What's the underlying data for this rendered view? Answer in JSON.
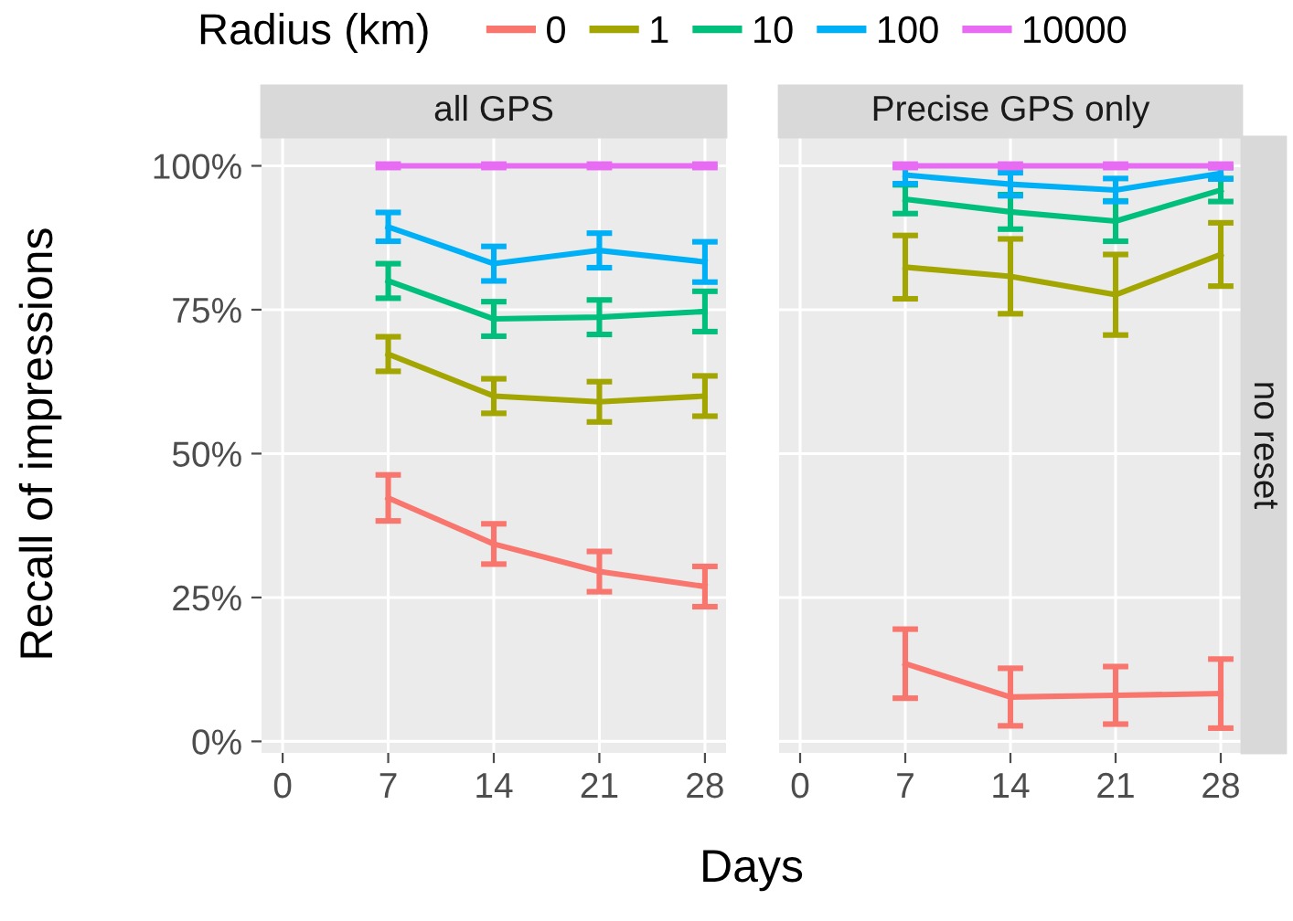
{
  "chart_data": [
    {
      "type": "line",
      "title": "all GPS",
      "ylabel": "Recall of impressions",
      "xlabel": "Days",
      "legend_title": "Radius (km)",
      "legend": "top",
      "grid": true,
      "marker": "none",
      "line_style": "solid",
      "x": [
        7,
        14,
        21,
        28
      ],
      "xlim": [
        -1.4,
        29.4
      ],
      "xticks": [
        0,
        7,
        14,
        21,
        28
      ],
      "ylim": [
        -2,
        105
      ],
      "yticks": [
        {
          "value": 0,
          "label": "0%"
        },
        {
          "value": 25,
          "label": "25%"
        },
        {
          "value": 50,
          "label": "50%"
        },
        {
          "value": 75,
          "label": "75%"
        },
        {
          "value": 100,
          "label": "100%"
        }
      ],
      "series": [
        {
          "name": "0",
          "color": "#f8766d",
          "values": [
            42.3,
            34.3,
            29.5,
            26.9
          ],
          "errors": [
            4,
            3.5,
            3.5,
            3.5
          ]
        },
        {
          "name": "1",
          "color": "#a3a500",
          "values": [
            67.3,
            60,
            59,
            60
          ],
          "errors": [
            3,
            3,
            3.5,
            3.5
          ]
        },
        {
          "name": "10",
          "color": "#00bf7d",
          "values": [
            80,
            73.4,
            73.7,
            74.7
          ],
          "errors": [
            3,
            3,
            3,
            3.5
          ]
        },
        {
          "name": "100",
          "color": "#00b0f6",
          "values": [
            89.4,
            83,
            85.3,
            83.3
          ],
          "errors": [
            2.5,
            3,
            3,
            3.5
          ]
        },
        {
          "name": "10000",
          "color": "#e76bf3",
          "values": [
            100,
            100,
            100,
            100
          ],
          "errors": [
            0.3,
            0.3,
            0.3,
            0.3
          ]
        }
      ]
    },
    {
      "type": "line",
      "title": "Precise GPS only",
      "tick_labels": "x",
      "grid": true,
      "marker": "none",
      "line_style": "solid",
      "annotations": [
        "no reset"
      ],
      "x": [
        7,
        14,
        21,
        28
      ],
      "xlim": [
        -1.4,
        29.4
      ],
      "xticks": [
        0,
        7,
        14,
        21,
        28
      ],
      "ylim": [
        -2,
        105
      ],
      "yticks": [
        {
          "value": 0,
          "label": null
        },
        {
          "value": 25,
          "label": null
        },
        {
          "value": 50,
          "label": null
        },
        {
          "value": 75,
          "label": null
        },
        {
          "value": 100,
          "label": null
        }
      ],
      "series": [
        {
          "name": "0",
          "color": "#f8766d",
          "values": [
            13.5,
            7.7,
            8,
            8.3
          ],
          "errors": [
            6,
            5,
            5,
            6
          ]
        },
        {
          "name": "1",
          "color": "#a3a500",
          "values": [
            82.4,
            80.8,
            77.6,
            84.6
          ],
          "errors": [
            5.5,
            6.5,
            7,
            5.5
          ]
        },
        {
          "name": "10",
          "color": "#00bf7d",
          "values": [
            94.2,
            92,
            90.4,
            95.8
          ],
          "errors": [
            2.5,
            3,
            3.5,
            2
          ]
        },
        {
          "name": "100",
          "color": "#00b0f6",
          "values": [
            98.4,
            96.8,
            95.8,
            98.7
          ],
          "errors": [
            1.5,
            2,
            2,
            1
          ]
        },
        {
          "name": "10000",
          "color": "#e76bf3",
          "values": [
            100,
            100,
            100,
            100
          ],
          "errors": [
            0.3,
            0.3,
            0.3,
            0.3
          ]
        }
      ]
    }
  ]
}
